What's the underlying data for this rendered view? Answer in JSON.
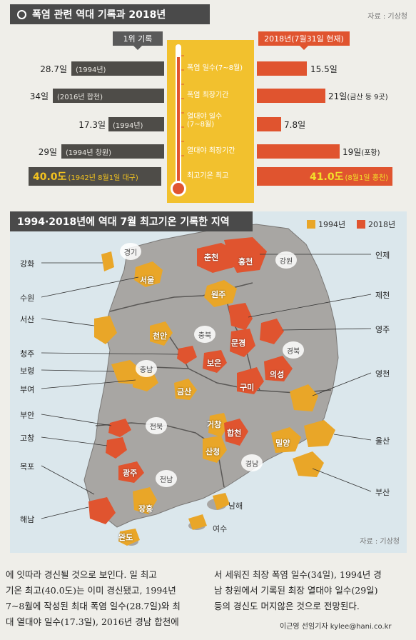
{
  "section1": {
    "title": "폭염 관련 역대 기록과 2018년",
    "source": "자료 : 기상청",
    "tag_record": "1위 기록",
    "tag_2018": "2018년(7월31일 현재)",
    "rows": [
      {
        "left_val": "28.7일",
        "left_detail": "(1994년)",
        "category": "폭염 일수(7~8월)",
        "right_val": "15.5일",
        "right_detail": ""
      },
      {
        "left_val": "34일",
        "left_detail": "(2016년 합천)",
        "category": "폭염 최장기간",
        "right_val": "21일",
        "right_detail": "(금산 등 9곳)"
      },
      {
        "left_val": "17.3일",
        "left_detail": "(1994년)",
        "category": "열대야 일수\n(7~8월)",
        "right_val": "7.8일",
        "right_detail": ""
      },
      {
        "left_val": "29일",
        "left_detail": "(1994년 창원)",
        "category": "열대야 최장기간",
        "right_val": "19일",
        "right_detail": "(포항)"
      }
    ],
    "highlight": {
      "category": "최고기온 최고",
      "left_val": "40.0도",
      "left_detail": "(1942년 8월1일 대구)",
      "right_val": "41.0도",
      "right_detail": "(8월1일 홍천)"
    }
  },
  "section2": {
    "title": "1994·2018년에 역대 7월 최고기온 기록한 지역",
    "legend_1994": "1994년",
    "legend_2018": "2018년",
    "source": "자료 : 기상청",
    "left_labels": [
      "강화",
      "수원",
      "서산",
      "청주",
      "보령",
      "부여",
      "부안",
      "고창",
      "목포",
      "해남"
    ],
    "right_labels": [
      "인제",
      "제천",
      "영주",
      "영천",
      "울산",
      "부산"
    ],
    "provinces": [
      "경기",
      "강원",
      "충북",
      "충남",
      "경북",
      "전북",
      "경남",
      "전남"
    ],
    "cities": [
      "춘천",
      "홍천",
      "서울",
      "원주",
      "천안",
      "문경",
      "보은",
      "의성",
      "구미",
      "금산",
      "거창",
      "합천",
      "산청",
      "밀양",
      "광주",
      "장흥",
      "완도",
      "남해",
      "여수"
    ]
  },
  "article": {
    "left_lines": [
      "에 잇따라 경신될 것으로 보인다. 일 최고",
      "기온 최고(40.0도)는 이미 경신됐고, 1994년",
      "7~8월에 작성된 최대 폭염 일수(28.7일)와 최",
      "대 열대야 일수(17.3일), 2016년 경남 합천에"
    ],
    "right_lines": [
      "서 세워진 최장 폭염 일수(34일), 1994년 경",
      "남 창원에서 기록된 최장 열대야 일수(29일)",
      "등의 경신도 머지않은 것으로 전망된다."
    ],
    "byline": "이근영 선임기자 kylee@hani.co.kr"
  },
  "colors": {
    "dark_bar": "#4e4c48",
    "red_bar": "#e0542f",
    "thermo_yellow": "#f2c12e",
    "c1994": "#e9a628",
    "c2018": "#e0542f"
  }
}
